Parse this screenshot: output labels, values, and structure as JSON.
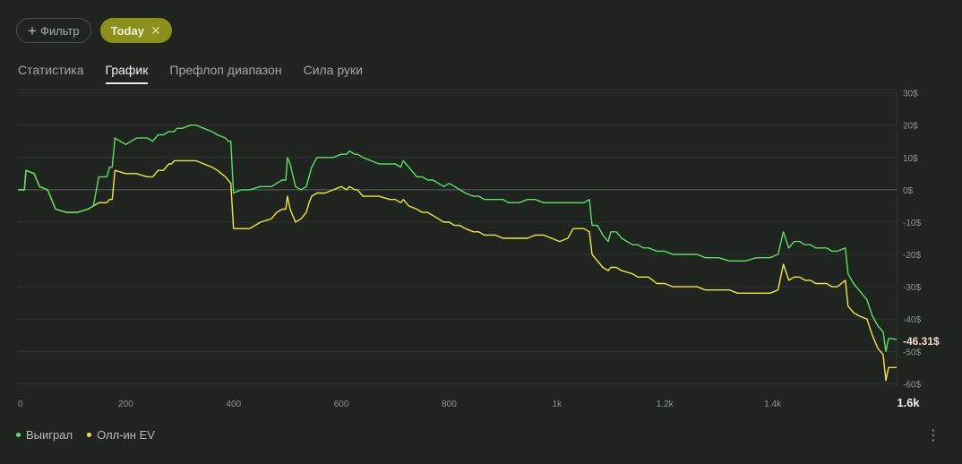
{
  "filters": {
    "add_label": "Фильтр",
    "active_chip": "Today"
  },
  "tabs": [
    {
      "label": "Статистика",
      "active": false
    },
    {
      "label": "График",
      "active": true
    },
    {
      "label": "Префлоп диапазон",
      "active": false
    },
    {
      "label": "Сила руки",
      "active": false
    }
  ],
  "legend": [
    {
      "label": "Выиграл",
      "color": "#5ee05e"
    },
    {
      "label": "Олл-ин EV",
      "color": "#f3e34a"
    }
  ],
  "chart_data": {
    "type": "line",
    "xlim": [
      0,
      1630
    ],
    "ylim": [
      -61,
      31
    ],
    "x_ticks": [
      {
        "value": 0,
        "label": "0"
      },
      {
        "value": 200,
        "label": "200"
      },
      {
        "value": 400,
        "label": "400"
      },
      {
        "value": 600,
        "label": "600"
      },
      {
        "value": 800,
        "label": "800"
      },
      {
        "value": 1000,
        "label": "1k"
      },
      {
        "value": 1200,
        "label": "1.2k"
      },
      {
        "value": 1400,
        "label": "1.4k"
      },
      {
        "value": 1630,
        "label": "1.6k"
      }
    ],
    "y_ticks": [
      {
        "value": 30,
        "label": "30$"
      },
      {
        "value": 20,
        "label": "20$"
      },
      {
        "value": 10,
        "label": "10$"
      },
      {
        "value": 0,
        "label": "0$"
      },
      {
        "value": -10,
        "label": "-10$"
      },
      {
        "value": -20,
        "label": "-20$"
      },
      {
        "value": -30,
        "label": "-30$"
      },
      {
        "value": -40,
        "label": "-40$"
      },
      {
        "value": -50,
        "label": "-50$"
      },
      {
        "value": -60,
        "label": "-60$"
      }
    ],
    "last_value_label": "-46.31$",
    "series": [
      {
        "name": "Выиграл",
        "color": "#5ee05e",
        "points": [
          [
            0,
            0
          ],
          [
            12,
            0
          ],
          [
            15,
            6
          ],
          [
            30,
            5
          ],
          [
            40,
            1
          ],
          [
            55,
            0
          ],
          [
            70,
            -6
          ],
          [
            90,
            -7
          ],
          [
            110,
            -7
          ],
          [
            130,
            -6
          ],
          [
            140,
            -5
          ],
          [
            150,
            4
          ],
          [
            165,
            4
          ],
          [
            170,
            7
          ],
          [
            175,
            7
          ],
          [
            180,
            16
          ],
          [
            200,
            14
          ],
          [
            220,
            16
          ],
          [
            240,
            16
          ],
          [
            250,
            15
          ],
          [
            260,
            17
          ],
          [
            270,
            17
          ],
          [
            280,
            18
          ],
          [
            285,
            18
          ],
          [
            290,
            18
          ],
          [
            295,
            19
          ],
          [
            305,
            19
          ],
          [
            320,
            20
          ],
          [
            330,
            20
          ],
          [
            345,
            19
          ],
          [
            360,
            18
          ],
          [
            370,
            17
          ],
          [
            385,
            16
          ],
          [
            390,
            15
          ],
          [
            395,
            15
          ],
          [
            400,
            -1
          ],
          [
            415,
            0
          ],
          [
            430,
            0
          ],
          [
            450,
            1
          ],
          [
            470,
            1
          ],
          [
            480,
            2
          ],
          [
            490,
            3
          ],
          [
            497,
            3
          ],
          [
            500,
            10
          ],
          [
            505,
            8
          ],
          [
            515,
            1
          ],
          [
            525,
            0
          ],
          [
            535,
            1
          ],
          [
            540,
            4
          ],
          [
            545,
            7
          ],
          [
            555,
            10
          ],
          [
            570,
            10
          ],
          [
            585,
            10
          ],
          [
            600,
            11
          ],
          [
            610,
            11
          ],
          [
            615,
            12
          ],
          [
            625,
            11
          ],
          [
            630,
            11
          ],
          [
            640,
            10
          ],
          [
            655,
            9
          ],
          [
            670,
            8
          ],
          [
            690,
            8
          ],
          [
            700,
            8
          ],
          [
            710,
            7
          ],
          [
            715,
            9
          ],
          [
            720,
            8
          ],
          [
            725,
            7
          ],
          [
            740,
            4
          ],
          [
            750,
            4
          ],
          [
            760,
            3
          ],
          [
            770,
            3
          ],
          [
            780,
            2
          ],
          [
            790,
            1
          ],
          [
            800,
            2
          ],
          [
            810,
            1
          ],
          [
            820,
            0
          ],
          [
            830,
            -1
          ],
          [
            845,
            -2
          ],
          [
            855,
            -2
          ],
          [
            865,
            -3
          ],
          [
            875,
            -3
          ],
          [
            885,
            -3
          ],
          [
            900,
            -3
          ],
          [
            910,
            -4
          ],
          [
            930,
            -4
          ],
          [
            945,
            -3
          ],
          [
            960,
            -3
          ],
          [
            975,
            -4
          ],
          [
            990,
            -4
          ],
          [
            1005,
            -4
          ],
          [
            1020,
            -4
          ],
          [
            1030,
            -4
          ],
          [
            1050,
            -4
          ],
          [
            1060,
            -3
          ],
          [
            1065,
            -11
          ],
          [
            1075,
            -11
          ],
          [
            1085,
            -14
          ],
          [
            1095,
            -16
          ],
          [
            1100,
            -13
          ],
          [
            1110,
            -13
          ],
          [
            1120,
            -15
          ],
          [
            1140,
            -17
          ],
          [
            1150,
            -17
          ],
          [
            1160,
            -18
          ],
          [
            1170,
            -18
          ],
          [
            1185,
            -19
          ],
          [
            1200,
            -19
          ],
          [
            1215,
            -20
          ],
          [
            1230,
            -20
          ],
          [
            1245,
            -20
          ],
          [
            1260,
            -20
          ],
          [
            1275,
            -21
          ],
          [
            1290,
            -21
          ],
          [
            1300,
            -21
          ],
          [
            1320,
            -22
          ],
          [
            1335,
            -22
          ],
          [
            1350,
            -22
          ],
          [
            1370,
            -21
          ],
          [
            1380,
            -21
          ],
          [
            1395,
            -21
          ],
          [
            1410,
            -20
          ],
          [
            1420,
            -13
          ],
          [
            1430,
            -18
          ],
          [
            1440,
            -16
          ],
          [
            1450,
            -16
          ],
          [
            1460,
            -17
          ],
          [
            1470,
            -17
          ],
          [
            1480,
            -18
          ],
          [
            1490,
            -18
          ],
          [
            1500,
            -18
          ],
          [
            1510,
            -19
          ],
          [
            1520,
            -19
          ],
          [
            1535,
            -18
          ],
          [
            1540,
            -26
          ],
          [
            1550,
            -29
          ],
          [
            1560,
            -31
          ],
          [
            1575,
            -34
          ],
          [
            1585,
            -39
          ],
          [
            1595,
            -42
          ],
          [
            1605,
            -44
          ],
          [
            1610,
            -50
          ],
          [
            1615,
            -46
          ],
          [
            1620,
            -46
          ],
          [
            1630,
            -46.31
          ]
        ]
      },
      {
        "name": "Олл-ин EV",
        "color": "#f3e34a",
        "points": [
          [
            0,
            0
          ],
          [
            12,
            0
          ],
          [
            15,
            6
          ],
          [
            30,
            5
          ],
          [
            40,
            1
          ],
          [
            55,
            0
          ],
          [
            70,
            -6
          ],
          [
            90,
            -7
          ],
          [
            110,
            -7
          ],
          [
            130,
            -6
          ],
          [
            140,
            -5
          ],
          [
            150,
            -4
          ],
          [
            165,
            -4
          ],
          [
            170,
            -3
          ],
          [
            175,
            -3
          ],
          [
            180,
            6
          ],
          [
            200,
            5
          ],
          [
            220,
            5
          ],
          [
            240,
            4
          ],
          [
            250,
            4
          ],
          [
            260,
            6
          ],
          [
            270,
            6
          ],
          [
            280,
            8
          ],
          [
            285,
            8
          ],
          [
            290,
            9
          ],
          [
            295,
            9
          ],
          [
            305,
            9
          ],
          [
            320,
            9
          ],
          [
            330,
            9
          ],
          [
            345,
            8
          ],
          [
            360,
            7
          ],
          [
            370,
            6
          ],
          [
            385,
            4
          ],
          [
            390,
            3
          ],
          [
            395,
            2
          ],
          [
            400,
            -12
          ],
          [
            415,
            -12
          ],
          [
            430,
            -12
          ],
          [
            450,
            -10
          ],
          [
            470,
            -9
          ],
          [
            480,
            -7
          ],
          [
            490,
            -6
          ],
          [
            497,
            -6
          ],
          [
            500,
            -2
          ],
          [
            505,
            -6
          ],
          [
            515,
            -10
          ],
          [
            525,
            -9
          ],
          [
            535,
            -7
          ],
          [
            540,
            -4
          ],
          [
            545,
            -2
          ],
          [
            555,
            -1
          ],
          [
            570,
            -1
          ],
          [
            585,
            0
          ],
          [
            600,
            1
          ],
          [
            610,
            0
          ],
          [
            615,
            1
          ],
          [
            625,
            0
          ],
          [
            630,
            0
          ],
          [
            640,
            -2
          ],
          [
            655,
            -2
          ],
          [
            670,
            -2
          ],
          [
            690,
            -3
          ],
          [
            700,
            -3
          ],
          [
            710,
            -4
          ],
          [
            715,
            -3
          ],
          [
            720,
            -4
          ],
          [
            725,
            -5
          ],
          [
            740,
            -6
          ],
          [
            750,
            -7
          ],
          [
            760,
            -7
          ],
          [
            770,
            -8
          ],
          [
            780,
            -9
          ],
          [
            790,
            -10
          ],
          [
            800,
            -10
          ],
          [
            810,
            -11
          ],
          [
            820,
            -11
          ],
          [
            830,
            -12
          ],
          [
            845,
            -13
          ],
          [
            855,
            -13
          ],
          [
            865,
            -14
          ],
          [
            875,
            -14
          ],
          [
            885,
            -14
          ],
          [
            900,
            -15
          ],
          [
            910,
            -15
          ],
          [
            930,
            -15
          ],
          [
            945,
            -15
          ],
          [
            960,
            -14
          ],
          [
            975,
            -14
          ],
          [
            990,
            -15
          ],
          [
            1005,
            -16
          ],
          [
            1020,
            -15
          ],
          [
            1030,
            -12
          ],
          [
            1050,
            -12
          ],
          [
            1060,
            -13
          ],
          [
            1065,
            -20
          ],
          [
            1075,
            -22
          ],
          [
            1085,
            -24
          ],
          [
            1095,
            -25
          ],
          [
            1100,
            -24
          ],
          [
            1110,
            -24
          ],
          [
            1120,
            -25
          ],
          [
            1140,
            -26
          ],
          [
            1150,
            -27
          ],
          [
            1160,
            -27
          ],
          [
            1170,
            -27
          ],
          [
            1185,
            -29
          ],
          [
            1200,
            -29
          ],
          [
            1215,
            -30
          ],
          [
            1230,
            -30
          ],
          [
            1245,
            -30
          ],
          [
            1260,
            -30
          ],
          [
            1275,
            -31
          ],
          [
            1290,
            -31
          ],
          [
            1300,
            -31
          ],
          [
            1320,
            -31
          ],
          [
            1335,
            -32
          ],
          [
            1350,
            -32
          ],
          [
            1370,
            -32
          ],
          [
            1380,
            -32
          ],
          [
            1395,
            -32
          ],
          [
            1410,
            -31
          ],
          [
            1420,
            -23
          ],
          [
            1430,
            -28
          ],
          [
            1440,
            -27
          ],
          [
            1450,
            -27
          ],
          [
            1460,
            -28
          ],
          [
            1470,
            -28
          ],
          [
            1480,
            -29
          ],
          [
            1490,
            -29
          ],
          [
            1500,
            -29
          ],
          [
            1510,
            -30
          ],
          [
            1520,
            -30
          ],
          [
            1535,
            -28
          ],
          [
            1540,
            -36
          ],
          [
            1550,
            -38
          ],
          [
            1560,
            -39
          ],
          [
            1575,
            -40
          ],
          [
            1585,
            -45
          ],
          [
            1595,
            -49
          ],
          [
            1605,
            -51
          ],
          [
            1610,
            -59
          ],
          [
            1615,
            -55
          ],
          [
            1620,
            -55
          ],
          [
            1630,
            -55
          ]
        ]
      }
    ]
  }
}
